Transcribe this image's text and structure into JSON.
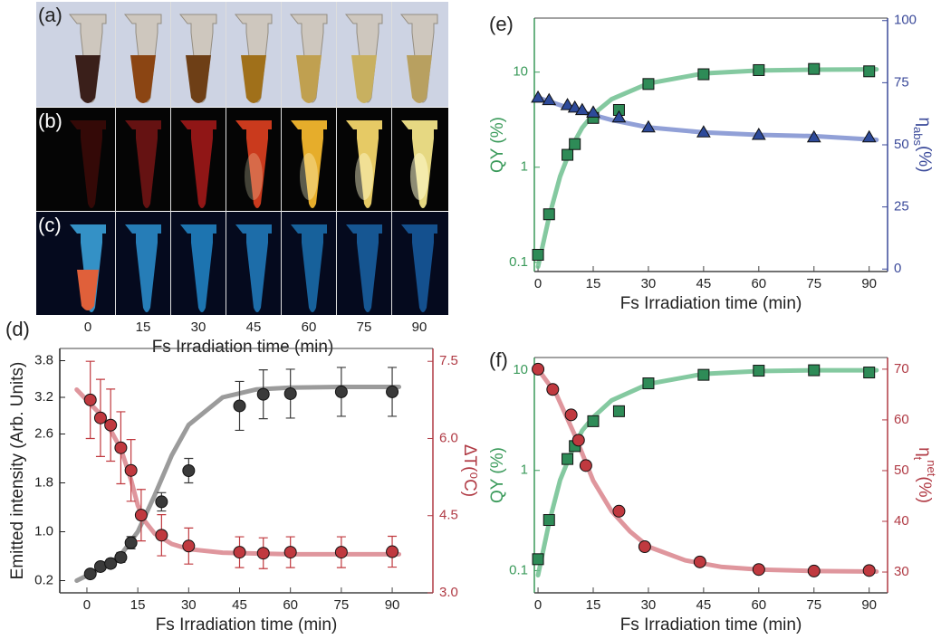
{
  "photos": {
    "panel_labels": [
      "(a)",
      "(b)",
      "(c)"
    ],
    "categories": [
      "0",
      "15",
      "30",
      "45",
      "60",
      "75",
      "90"
    ],
    "xlabel": "Fs Irradiation time (min)"
  },
  "chart_data": [
    {
      "type": "scatter",
      "label": "(d)",
      "xlabel": "Fs Irradiation time (min)",
      "ylabel": "Emitted intensity (Arb. Units)",
      "y2label": [
        {
          "text": "ΔT(⁰C)"
        }
      ],
      "xlim": [
        -8,
        102
      ],
      "xticks": [
        0,
        15,
        30,
        45,
        60,
        75,
        90
      ],
      "ylim": [
        0,
        4
      ],
      "yticks": [
        0.2,
        {
          "value": 1,
          "label": "1.0"
        },
        1.8,
        2.6,
        3.2,
        3.8
      ],
      "y2lim": [
        3.0,
        7.75
      ],
      "y2ticks": [
        {
          "value": 3,
          "label": "3.0"
        },
        4.5,
        {
          "value": 6,
          "label": "6.0"
        },
        7.5
      ],
      "ycolor": "#222222",
      "y2color": "#b03a44",
      "series": [
        {
          "marker": "line",
          "color": "#8a8a8a",
          "x": [
            -3,
            5,
            10,
            15,
            20,
            25,
            30,
            40,
            50,
            60,
            75,
            92
          ],
          "values": [
            0.2,
            0.42,
            0.62,
            1.0,
            1.6,
            2.25,
            2.75,
            3.2,
            3.33,
            3.36,
            3.37,
            3.37
          ]
        },
        {
          "marker": "line",
          "axis": "y2",
          "color": "#d9848c",
          "x": [
            -3,
            5,
            10,
            13,
            15,
            17,
            20,
            25,
            30,
            40,
            60,
            92
          ],
          "values": [
            6.95,
            6.4,
            5.8,
            5.2,
            4.7,
            4.4,
            4.15,
            3.95,
            3.85,
            3.78,
            3.75,
            3.75
          ]
        },
        {
          "marker": "circle",
          "color": "#3a3a3a",
          "x": [
            1,
            4,
            7,
            10,
            13,
            22,
            30,
            45,
            52,
            60,
            75,
            90
          ],
          "values": [
            0.31,
            0.43,
            0.48,
            0.58,
            0.82,
            1.49,
            2.0,
            3.06,
            3.25,
            3.26,
            3.29,
            3.29
          ],
          "errors": [
            0.05,
            0.06,
            0.07,
            0.08,
            0.1,
            0.15,
            0.2,
            0.4,
            0.4,
            0.4,
            0.4,
            0.4
          ]
        },
        {
          "marker": "circle",
          "axis": "y2",
          "color": "#c0393f",
          "x": [
            1,
            4,
            7,
            10,
            13,
            16,
            22,
            30,
            45,
            52,
            60,
            75,
            90
          ],
          "values": [
            6.75,
            6.4,
            6.26,
            5.82,
            5.38,
            4.51,
            4.12,
            3.91,
            3.79,
            3.77,
            3.79,
            3.79,
            3.8
          ],
          "errors": [
            0.75,
            0.75,
            0.7,
            0.7,
            0.6,
            0.5,
            0.4,
            0.35,
            0.3,
            0.3,
            0.3,
            0.3,
            0.3
          ]
        }
      ]
    },
    {
      "type": "scatter",
      "label": "(e)",
      "xlabel": "Fs Irradiation time (min)",
      "ylabel": "QY (%)",
      "y2label": [
        {
          "text": "η"
        },
        {
          "text": "abs",
          "shift": "sub"
        },
        {
          "text": "(%)"
        }
      ],
      "xlim": [
        -1,
        95
      ],
      "xticks": [
        0,
        15,
        30,
        45,
        60,
        75,
        90
      ],
      "ylim": [
        0.08,
        37
      ],
      "ylog": true,
      "yticks": [
        0.1,
        1,
        10
      ],
      "y2lim": [
        -1,
        101
      ],
      "y2ticks": [
        0,
        25,
        50,
        75,
        100
      ],
      "ycolor": "#3a9a5a",
      "y2color": "#3b4a9a",
      "series": [
        {
          "marker": "line",
          "color": "#6fbf8f",
          "x": [
            0,
            3,
            6,
            9,
            12,
            15,
            20,
            30,
            45,
            60,
            75,
            92
          ],
          "values": [
            0.09,
            0.3,
            0.8,
            1.6,
            2.6,
            3.6,
            5.2,
            7.6,
            9.7,
            10.4,
            10.6,
            10.7
          ]
        },
        {
          "marker": "line",
          "axis": "y2",
          "color": "#7e8fd0",
          "x": [
            0,
            10,
            20,
            30,
            45,
            60,
            75,
            92
          ],
          "values": [
            69,
            64,
            60,
            57,
            55,
            54,
            53.5,
            52
          ]
        },
        {
          "marker": "square",
          "color": "#2e8b57",
          "x": [
            0,
            3,
            8,
            10,
            15,
            22,
            30,
            45,
            60,
            75,
            90
          ],
          "values": [
            0.12,
            0.32,
            1.35,
            1.75,
            3.3,
            4.0,
            7.5,
            9.5,
            10.5,
            10.8,
            10.2
          ]
        },
        {
          "marker": "triangle",
          "axis": "y2",
          "color": "#2d4a9a",
          "x": [
            0,
            3,
            8,
            10,
            12,
            15,
            22,
            30,
            45,
            60,
            75,
            90
          ],
          "values": [
            69,
            68,
            66,
            65,
            64,
            63,
            61,
            57,
            55,
            54,
            53,
            53
          ]
        }
      ]
    },
    {
      "type": "scatter",
      "label": "(f)",
      "xlabel": "Fs Irradiation time (min)",
      "ylabel": "QY (%)",
      "y2label": [
        {
          "text": "η"
        },
        {
          "text": "t",
          "shift": "sub"
        },
        {
          "text": "net",
          "shift": "super"
        },
        {
          "text": "(%)"
        }
      ],
      "xlim": [
        -1,
        95
      ],
      "xticks": [
        0,
        15,
        30,
        45,
        60,
        75,
        90
      ],
      "ylim": [
        0.06,
        13.4
      ],
      "ylog": true,
      "yticks": [
        0.1,
        1,
        10
      ],
      "y2lim": [
        25.9,
        72.3
      ],
      "y2ticks": [
        30,
        40,
        50,
        60,
        70
      ],
      "ycolor": "#3a9a5a",
      "y2color": "#b03a44",
      "series": [
        {
          "marker": "line",
          "color": "#6fbf8f",
          "x": [
            0,
            3,
            6,
            9,
            12,
            15,
            20,
            30,
            45,
            60,
            75,
            92
          ],
          "values": [
            0.09,
            0.3,
            0.8,
            1.5,
            2.5,
            3.4,
            5.0,
            7.3,
            9.2,
            9.8,
            10.0,
            10.0
          ]
        },
        {
          "marker": "line",
          "axis": "y2",
          "color": "#d9848c",
          "x": [
            0,
            5,
            10,
            15,
            20,
            25,
            30,
            40,
            50,
            60,
            75,
            92
          ],
          "values": [
            70,
            65,
            57,
            48,
            42,
            38,
            35,
            32.3,
            31,
            30.5,
            30.2,
            30.1
          ]
        },
        {
          "marker": "square",
          "color": "#2e8b57",
          "x": [
            0,
            3,
            8,
            10,
            15,
            22,
            30,
            45,
            60,
            75,
            90
          ],
          "values": [
            0.13,
            0.32,
            1.3,
            1.75,
            3.1,
            3.9,
            7.4,
            9.0,
            9.9,
            10.0,
            9.5
          ]
        },
        {
          "marker": "circle",
          "axis": "y2",
          "color": "#c0393f",
          "x": [
            0,
            4,
            9,
            11,
            13,
            22,
            29,
            44,
            60,
            75,
            90
          ],
          "values": [
            70,
            66,
            61,
            56,
            51,
            42,
            35,
            32,
            30.5,
            30.2,
            30.3
          ]
        }
      ]
    }
  ]
}
